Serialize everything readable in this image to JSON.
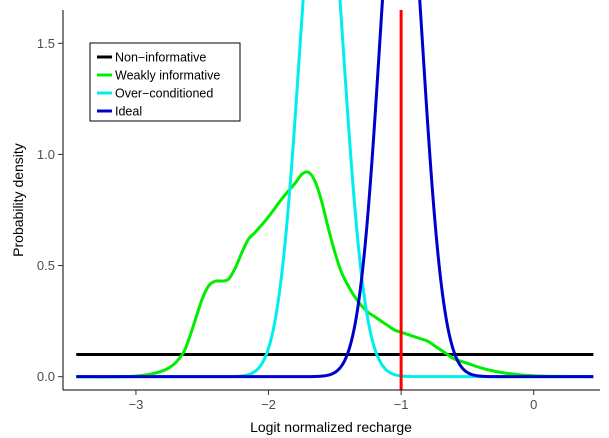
{
  "chart_data": {
    "type": "line",
    "title": "",
    "xlabel": "Logit normalized recharge",
    "ylabel": "Probability density",
    "xlim": [
      -3.55,
      0.5
    ],
    "ylim": [
      -0.06,
      1.65
    ],
    "x_ticks": [
      -3,
      -2,
      -1,
      0
    ],
    "x_tick_labels": [
      "−3",
      "−2",
      "−1",
      "0"
    ],
    "y_ticks": [
      0.0,
      0.5,
      1.0,
      1.5
    ],
    "y_tick_labels": [
      "0.0",
      "0.5",
      "1.0",
      "1.5"
    ],
    "grid": false,
    "legend_position": "top-left",
    "vertical_line": {
      "x": -1.0,
      "color": "#ff0000"
    },
    "series": [
      {
        "name": "Non−informative",
        "color": "#000000",
        "x": [
          -3.45,
          0.45
        ],
        "y": [
          0.1,
          0.1
        ]
      },
      {
        "name": "Weakly informative",
        "color": "#00ee00",
        "x": [
          -3.45,
          -3.1,
          -2.9,
          -2.75,
          -2.65,
          -2.6,
          -2.55,
          -2.5,
          -2.45,
          -2.4,
          -2.35,
          -2.3,
          -2.25,
          -2.2,
          -2.15,
          -2.1,
          -2.0,
          -1.9,
          -1.8,
          -1.75,
          -1.7,
          -1.65,
          -1.6,
          -1.55,
          -1.5,
          -1.45,
          -1.4,
          -1.35,
          -1.3,
          -1.25,
          -1.2,
          -1.15,
          -1.1,
          -1.05,
          -1.0,
          -0.95,
          -0.9,
          -0.85,
          -0.8,
          -0.75,
          -0.7,
          -0.65,
          -0.6,
          -0.5,
          -0.4,
          -0.3,
          -0.2,
          -0.1,
          0.0,
          0.1,
          0.45
        ],
        "y": [
          0.0,
          0.0,
          0.01,
          0.04,
          0.1,
          0.17,
          0.26,
          0.35,
          0.41,
          0.43,
          0.43,
          0.44,
          0.49,
          0.56,
          0.62,
          0.65,
          0.72,
          0.8,
          0.87,
          0.91,
          0.92,
          0.88,
          0.79,
          0.67,
          0.56,
          0.47,
          0.41,
          0.36,
          0.32,
          0.29,
          0.27,
          0.25,
          0.23,
          0.21,
          0.2,
          0.19,
          0.18,
          0.17,
          0.16,
          0.14,
          0.12,
          0.1,
          0.08,
          0.06,
          0.04,
          0.025,
          0.015,
          0.008,
          0.004,
          0.002,
          0.0
        ]
      },
      {
        "name": "Over−conditioned",
        "color": "#00eeee",
        "mean": -1.6,
        "sd": 0.165,
        "x_range": [
          -3.45,
          0.45
        ]
      },
      {
        "name": "Ideal",
        "color": "#0000cd",
        "mean": -1.0,
        "sd": 0.16,
        "x_range": [
          -3.45,
          0.45
        ]
      }
    ]
  }
}
